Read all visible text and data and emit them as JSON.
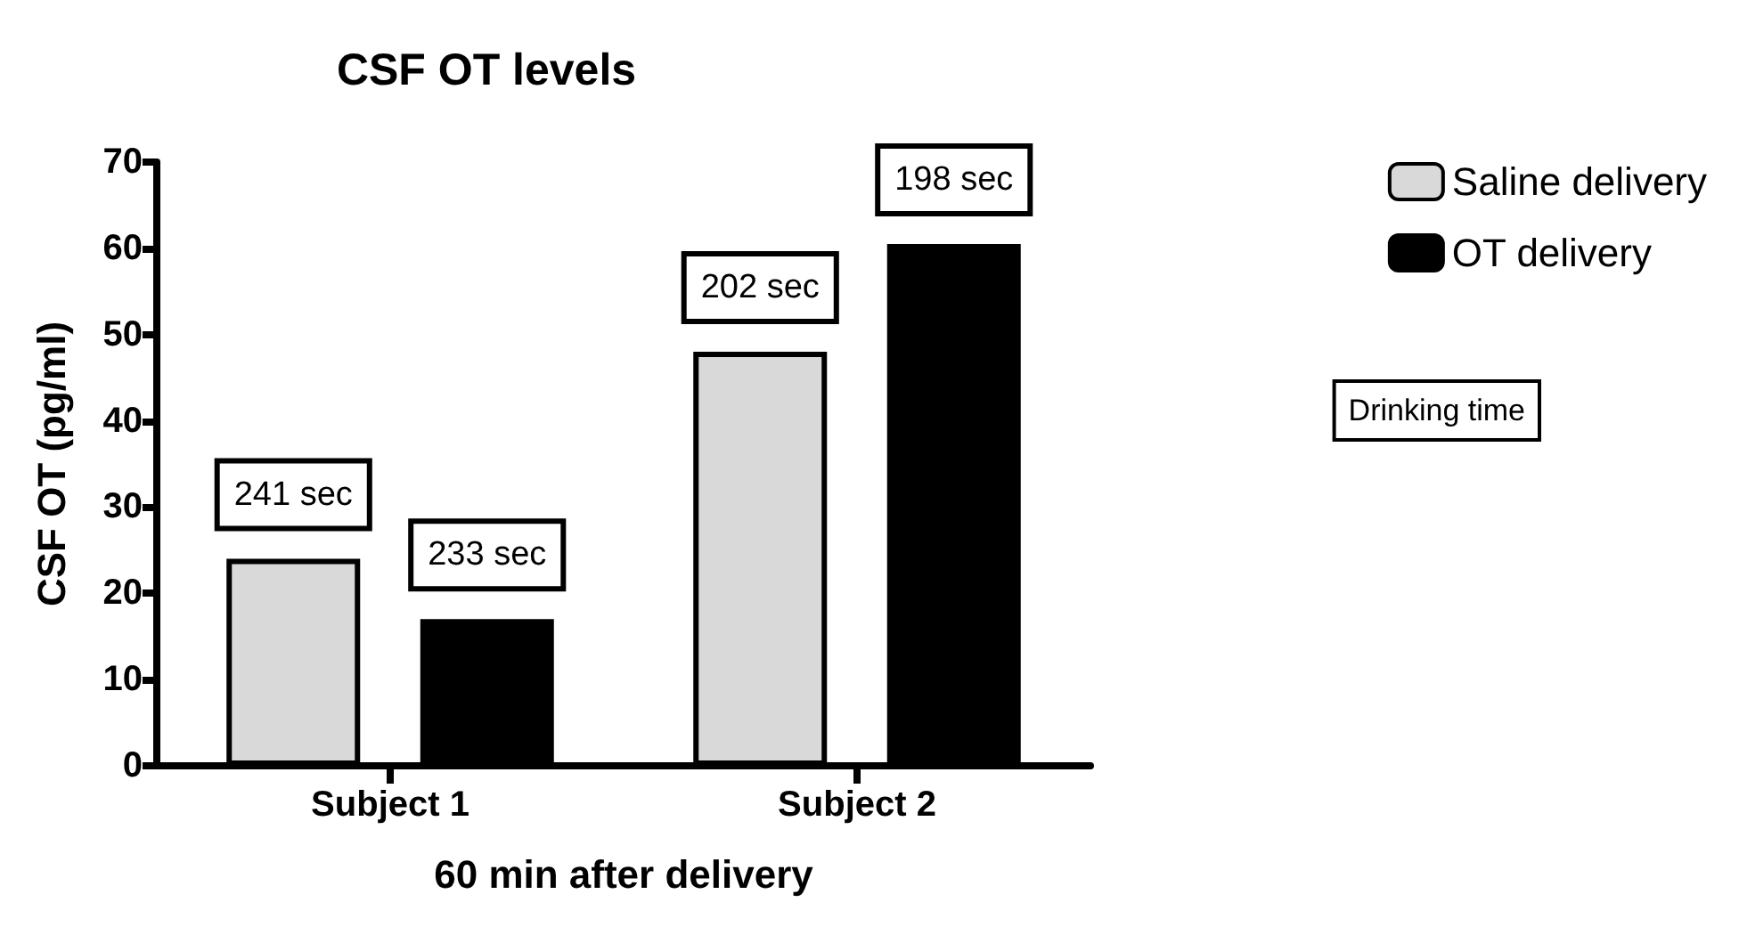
{
  "chart_data": {
    "type": "bar",
    "title": "CSF OT levels",
    "xlabel": "60 min after delivery",
    "ylabel": "CSF OT (pg/ml)",
    "categories": [
      "Subject 1",
      "Subject 2"
    ],
    "series": [
      {
        "name": "Saline delivery",
        "color": "#d9d9d9",
        "values": [
          24,
          48
        ]
      },
      {
        "name": "OT delivery",
        "color": "#000000",
        "values": [
          17,
          60.5
        ]
      }
    ],
    "ylim": [
      0,
      70
    ],
    "yticks": [
      0,
      10,
      20,
      30,
      40,
      50,
      60,
      70
    ],
    "grid": false,
    "legend": "top right",
    "annotations": [
      "241 sec",
      "233 sec",
      "202 sec",
      "198 sec",
      "Drinking time"
    ]
  }
}
